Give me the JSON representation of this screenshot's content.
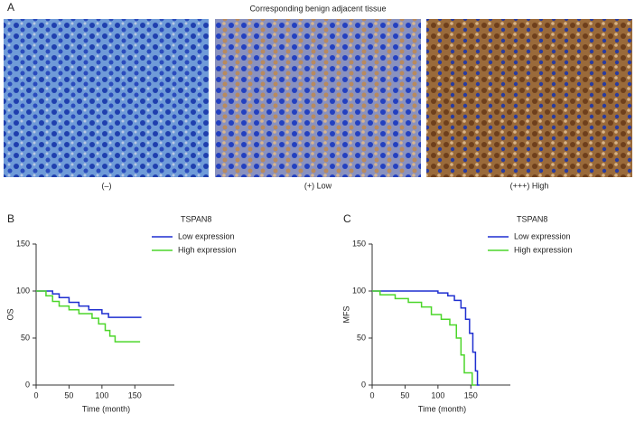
{
  "panel_a": {
    "label": "A",
    "title": "Corresponding benign adjacent tissue",
    "captions": [
      "(–)",
      "(+) Low",
      "(+++) High"
    ]
  },
  "chart_data": [
    {
      "type": "line",
      "panel_label": "B",
      "legend_title": "TSPAN8",
      "x_label": "Time (month)",
      "y_label": "OS",
      "xlim": [
        0,
        210
      ],
      "ylim": [
        0,
        150
      ],
      "xticks": [
        0,
        50,
        100,
        150
      ],
      "yticks": [
        0,
        50,
        100,
        150
      ],
      "series": [
        {
          "name": "Low expression",
          "color": "#1f2fd0",
          "x": [
            0,
            25,
            25,
            35,
            35,
            50,
            50,
            65,
            65,
            80,
            80,
            100,
            100,
            110,
            110,
            160
          ],
          "values": [
            100,
            100,
            97,
            97,
            93,
            93,
            88,
            88,
            84,
            84,
            80,
            80,
            76,
            76,
            72,
            72
          ]
        },
        {
          "name": "High expression",
          "color": "#4cd62a",
          "x": [
            0,
            15,
            15,
            25,
            25,
            35,
            35,
            50,
            50,
            65,
            65,
            85,
            85,
            95,
            95,
            105,
            105,
            112,
            112,
            120,
            120,
            158
          ],
          "values": [
            100,
            100,
            95,
            95,
            89,
            89,
            84,
            84,
            80,
            80,
            76,
            76,
            71,
            71,
            65,
            65,
            58,
            58,
            52,
            52,
            46,
            46
          ]
        }
      ]
    },
    {
      "type": "line",
      "panel_label": "C",
      "legend_title": "TSPAN8",
      "x_label": "Time (month)",
      "y_label": "MFS",
      "xlim": [
        0,
        210
      ],
      "ylim": [
        0,
        150
      ],
      "xticks": [
        0,
        50,
        100,
        150
      ],
      "yticks": [
        0,
        50,
        100,
        150
      ],
      "series": [
        {
          "name": "Low expression",
          "color": "#1f2fd0",
          "x": [
            0,
            100,
            100,
            115,
            115,
            125,
            125,
            135,
            135,
            142,
            142,
            148,
            148,
            153,
            153,
            157,
            157,
            160,
            160,
            163
          ],
          "values": [
            100,
            100,
            98,
            98,
            95,
            95,
            90,
            90,
            82,
            82,
            70,
            70,
            55,
            55,
            35,
            35,
            15,
            15,
            0,
            0
          ]
        },
        {
          "name": "High expression",
          "color": "#4cd62a",
          "x": [
            0,
            12,
            12,
            35,
            35,
            55,
            55,
            75,
            75,
            90,
            90,
            105,
            105,
            118,
            118,
            128,
            128,
            135,
            135,
            140,
            140,
            152,
            152,
            157
          ],
          "values": [
            100,
            100,
            96,
            96,
            92,
            92,
            88,
            88,
            83,
            83,
            75,
            75,
            70,
            70,
            64,
            64,
            50,
            50,
            32,
            32,
            13,
            13,
            0,
            0
          ]
        }
      ]
    }
  ]
}
